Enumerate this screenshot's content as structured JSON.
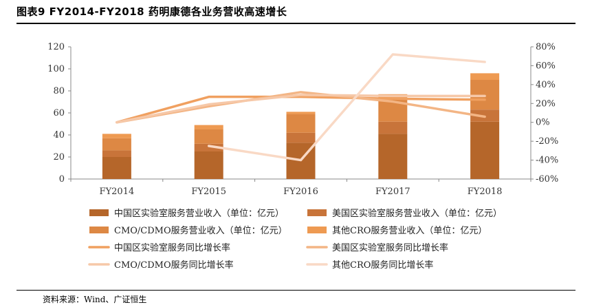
{
  "title": "图表9 FY2014-FY2018 药明康德各业务营收高速增长",
  "source": "资料来源：Wind、广证恒生",
  "chart_data": {
    "type": "bar",
    "stacked": true,
    "categories": [
      "FY2014",
      "FY2015",
      "FY2016",
      "FY2017",
      "FY2018"
    ],
    "ylim": [
      0,
      120
    ],
    "y_ticks": [
      "0",
      "20",
      "40",
      "60",
      "80",
      "100",
      "120"
    ],
    "y2lim": [
      -60,
      80
    ],
    "y2_ticks": [
      "-60%",
      "-40%",
      "-20%",
      "0%",
      "20%",
      "40%",
      "60%",
      "80%"
    ],
    "grid": false,
    "legend_position": "bottom",
    "series": [
      {
        "name": "中国区实验室服务营业收入（单位：亿元）",
        "kind": "bar",
        "color": "#b5662a",
        "values": [
          20,
          25,
          33,
          41,
          52
        ]
      },
      {
        "name": "美国区实验室服务营业收入（单位：亿元）",
        "kind": "bar",
        "color": "#c8743a",
        "values": [
          6,
          7,
          9,
          11,
          11
        ]
      },
      {
        "name": "CMO/CDMO服务营业收入（单位：亿元）",
        "kind": "bar",
        "color": "#dd8844",
        "values": [
          11,
          13,
          17,
          22,
          27
        ]
      },
      {
        "name": "其他CRO服务营业收入（单位：亿元）",
        "kind": "bar",
        "color": "#ee9a52",
        "values": [
          4,
          4,
          2,
          3,
          6
        ]
      },
      {
        "name": "中国区实验室服务同比增长率",
        "kind": "line",
        "color": "#f0a060",
        "values": [
          0,
          27,
          27,
          25,
          24
        ]
      },
      {
        "name": "美国区实验室服务同比增长率",
        "kind": "line",
        "color": "#f3b585",
        "values": [
          0,
          17,
          32,
          22,
          6
        ]
      },
      {
        "name": "CMO/CDMO服务同比增长率",
        "kind": "line",
        "color": "#f6c8a8",
        "values": [
          0,
          19,
          29,
          28,
          28
        ]
      },
      {
        "name": "其他CRO服务同比增长率",
        "kind": "line",
        "color": "#f9d9c5",
        "values": [
          null,
          -25,
          -40,
          72,
          64
        ]
      }
    ]
  }
}
